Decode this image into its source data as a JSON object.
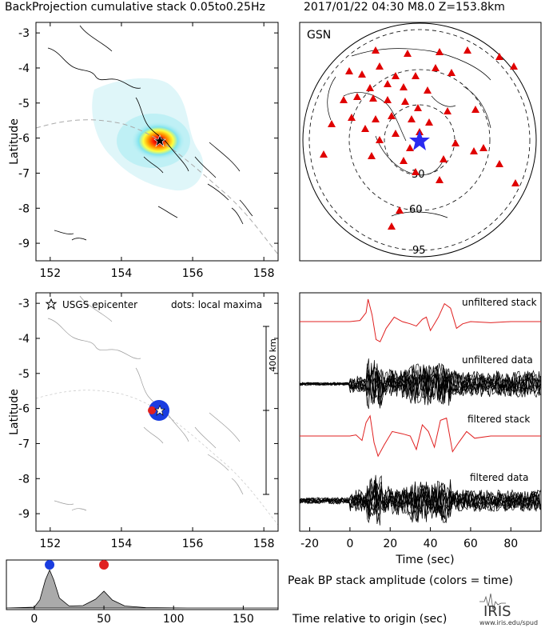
{
  "header": {
    "title": "BackProjection cumulative stack 0.05to0.25Hz",
    "event": "2017/01/22 04:30  M8.0  Z=153.8km"
  },
  "map_panels": {
    "lat_ticks": [
      "-3",
      "-4",
      "-5",
      "-6",
      "-7",
      "-8",
      "-9"
    ],
    "lon_ticks": [
      "152",
      "154",
      "156",
      "158"
    ],
    "ylabel": "Latitude",
    "lat_range": [
      -9.5,
      -2.7
    ],
    "lon_range": [
      151.6,
      158.4
    ],
    "epicenter": {
      "lon": 155.1,
      "lat": -6.25
    }
  },
  "top_left": {
    "heatmap_colors": [
      "#dff6f9",
      "#bff0f5",
      "#7fe4ee",
      "#ffff40",
      "#ffa000",
      "#ff2a00",
      "#c00000"
    ]
  },
  "top_right": {
    "network": "GSN",
    "ring_labels": [
      "30",
      "60",
      "95"
    ],
    "station_color": "#e00000",
    "epicenter_color": "#2a2af0",
    "stations": [
      [
        -55,
        -112
      ],
      [
        -15,
        -108
      ],
      [
        25,
        -110
      ],
      [
        60,
        -112
      ],
      [
        100,
        -104
      ],
      [
        118,
        -92
      ],
      [
        -88,
        -86
      ],
      [
        -72,
        -82
      ],
      [
        -50,
        -92
      ],
      [
        -30,
        -80
      ],
      [
        -5,
        -80
      ],
      [
        20,
        -90
      ],
      [
        40,
        -84
      ],
      [
        -62,
        -65
      ],
      [
        -40,
        -70
      ],
      [
        -20,
        -66
      ],
      [
        10,
        -62
      ],
      [
        -95,
        -50
      ],
      [
        -78,
        -54
      ],
      [
        -58,
        -52
      ],
      [
        -40,
        -50
      ],
      [
        -18,
        -48
      ],
      [
        -2,
        -40
      ],
      [
        35,
        -36
      ],
      [
        70,
        -38
      ],
      [
        -35,
        -30
      ],
      [
        -10,
        -26
      ],
      [
        12,
        -22
      ],
      [
        -55,
        -26
      ],
      [
        -110,
        -20
      ],
      [
        -85,
        -28
      ],
      [
        -68,
        -14
      ],
      [
        -30,
        -8
      ],
      [
        0,
        -10
      ],
      [
        -50,
        0
      ],
      [
        -12,
        10
      ],
      [
        45,
        4
      ],
      [
        80,
        10
      ],
      [
        -120,
        18
      ],
      [
        -60,
        20
      ],
      [
        -20,
        26
      ],
      [
        30,
        24
      ],
      [
        68,
        14
      ],
      [
        100,
        30
      ],
      [
        -5,
        40
      ],
      [
        25,
        50
      ],
      [
        120,
        54
      ],
      [
        -25,
        88
      ],
      [
        -35,
        108
      ]
    ]
  },
  "bottom_left": {
    "legend_epicenter": "USGS epicenter",
    "legend_dots": "dots: local maxima",
    "scale_label": "400 km",
    "blue_color": "#1a3de0",
    "red_color": "#e02020"
  },
  "traces": {
    "labels": [
      "unfiltered stack",
      "unfiltered data",
      "filtered stack",
      "filtered data"
    ],
    "x_ticks": [
      "-20",
      "0",
      "20",
      "40",
      "60",
      "80"
    ],
    "x_range": [
      -25,
      95
    ],
    "xlabel": "Time (sec)",
    "stack_color": "#e02020",
    "data_color": "#000000"
  },
  "amplitude": {
    "x_ticks": [
      "0",
      "50",
      "100",
      "150"
    ],
    "x_range": [
      -20,
      175
    ],
    "caption": "Peak BP stack amplitude (colors = time)",
    "xlabel": "Time relative to origin (sec)",
    "peaks": [
      {
        "t": 11,
        "color": "#1a3de0"
      },
      {
        "t": 50,
        "color": "#e02020"
      }
    ]
  },
  "logo": {
    "name": "IRIS",
    "url": "www.iris.edu/spud"
  },
  "chart_data": [
    {
      "type": "heatmap",
      "title": "BackProjection cumulative stack 0.05to0.25Hz",
      "ylabel": "Latitude",
      "xlim": [
        151.6,
        158.4
      ],
      "ylim": [
        -9.5,
        -2.7
      ],
      "peak": {
        "lon": 155.0,
        "lat": -6.25
      },
      "epicenter": {
        "lon": 155.1,
        "lat": -6.25
      }
    },
    {
      "type": "scatter",
      "title": "GSN",
      "ring_labels_deg": [
        30,
        60,
        95
      ]
    },
    {
      "type": "line",
      "xlabel": "Time (sec)",
      "xlim": [
        -25,
        95
      ],
      "series": [
        {
          "name": "unfiltered stack",
          "x": [
            -25,
            0,
            5,
            8,
            9,
            11,
            13,
            15,
            18,
            22,
            26,
            30,
            33,
            36,
            38,
            40,
            44,
            47,
            50,
            53,
            56,
            60,
            70,
            80,
            95
          ],
          "y": [
            0,
            0,
            0.05,
            0.4,
            1,
            0.3,
            -0.8,
            -0.9,
            -0.3,
            0.2,
            0,
            -0.1,
            -0.2,
            0.1,
            0.2,
            -0.4,
            0.2,
            0.8,
            0.6,
            -0.3,
            -0.1,
            0,
            -0.05,
            0,
            0
          ]
        },
        {
          "name": "filtered stack",
          "x": [
            -25,
            0,
            3,
            6,
            8,
            10,
            12,
            14,
            17,
            21,
            26,
            30,
            33,
            36,
            39,
            42,
            45,
            48,
            51,
            54,
            58,
            62,
            70,
            80,
            95
          ],
          "y": [
            0,
            0,
            0.05,
            -0.2,
            0.6,
            0.9,
            -0.3,
            -0.9,
            -0.4,
            0.2,
            0.1,
            0,
            -0.6,
            0.5,
            0.2,
            -0.5,
            0.7,
            0.8,
            -0.7,
            -0.3,
            0.2,
            -0.1,
            0,
            0,
            0
          ]
        }
      ]
    },
    {
      "type": "area",
      "title": "Peak BP stack amplitude (colors = time)",
      "xlabel": "Time relative to origin (sec)",
      "xlim": [
        -20,
        175
      ],
      "x": [
        -20,
        0,
        4,
        8,
        11,
        14,
        18,
        25,
        35,
        44,
        50,
        56,
        65,
        80,
        110,
        175
      ],
      "y": [
        0,
        0.02,
        0.2,
        0.7,
        0.95,
        0.7,
        0.25,
        0.05,
        0.06,
        0.22,
        0.42,
        0.2,
        0.05,
        0.01,
        0,
        0
      ],
      "peaks": [
        {
          "t": 11,
          "color": "blue"
        },
        {
          "t": 50,
          "color": "red"
        }
      ]
    }
  ]
}
